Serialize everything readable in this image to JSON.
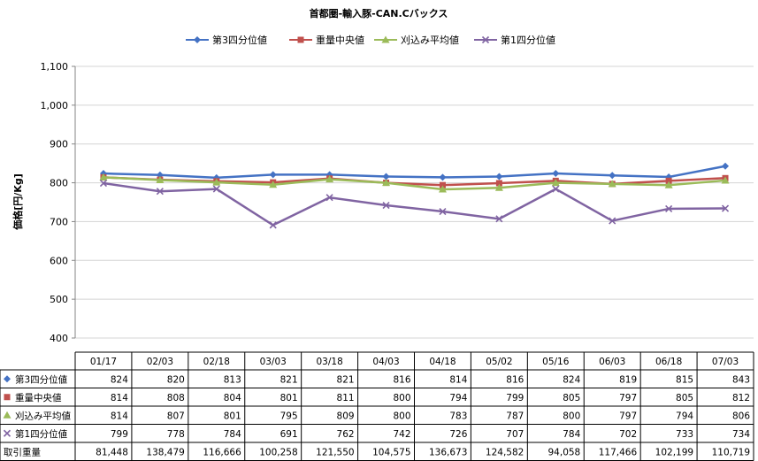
{
  "chart_data": {
    "type": "line",
    "title": "首都圏-輸入豚-CAN.Cバックス",
    "ylabel": "価格[円/Kg]",
    "ylim": [
      400,
      1100
    ],
    "yticks": [
      400,
      500,
      600,
      700,
      800,
      900,
      1000,
      1100
    ],
    "ytick_labels": [
      "400",
      "500",
      "600",
      "700",
      "800",
      "900",
      "1,000",
      "1,100"
    ],
    "categories": [
      "01/17",
      "02/03",
      "02/18",
      "03/03",
      "03/18",
      "04/03",
      "04/18",
      "05/02",
      "05/16",
      "06/03",
      "06/18",
      "07/03"
    ],
    "series": [
      {
        "name": "第3四分位値",
        "color": "#4472C4",
        "marker": "diamond",
        "values": [
          824,
          820,
          813,
          821,
          821,
          816,
          814,
          816,
          824,
          819,
          815,
          843
        ]
      },
      {
        "name": "重量中央値",
        "color": "#C0504D",
        "marker": "square",
        "values": [
          814,
          808,
          804,
          801,
          811,
          800,
          794,
          799,
          805,
          797,
          805,
          812
        ]
      },
      {
        "name": "刈込み平均値",
        "color": "#9BBB59",
        "marker": "triangle",
        "values": [
          814,
          807,
          801,
          795,
          809,
          800,
          783,
          787,
          800,
          797,
          794,
          806
        ]
      },
      {
        "name": "第1四分位値",
        "color": "#8064A2",
        "marker": "x",
        "values": [
          799,
          778,
          784,
          691,
          762,
          742,
          726,
          707,
          784,
          702,
          733,
          734
        ]
      }
    ],
    "table_rows": [
      {
        "label": "第3四分位値",
        "cells": [
          "824",
          "820",
          "813",
          "821",
          "821",
          "816",
          "814",
          "816",
          "824",
          "819",
          "815",
          "843"
        ]
      },
      {
        "label": "重量中央値",
        "cells": [
          "814",
          "808",
          "804",
          "801",
          "811",
          "800",
          "794",
          "799",
          "805",
          "797",
          "805",
          "812"
        ]
      },
      {
        "label": "刈込み平均値",
        "cells": [
          "814",
          "807",
          "801",
          "795",
          "809",
          "800",
          "783",
          "787",
          "800",
          "797",
          "794",
          "806"
        ]
      },
      {
        "label": "第1四分位値",
        "cells": [
          "799",
          "778",
          "784",
          "691",
          "762",
          "742",
          "726",
          "707",
          "784",
          "702",
          "733",
          "734"
        ]
      },
      {
        "label": "取引重量",
        "cells": [
          "81,448",
          "138,479",
          "116,666",
          "100,258",
          "121,550",
          "104,575",
          "136,673",
          "124,582",
          "94,058",
          "117,466",
          "102,199",
          "110,719"
        ]
      }
    ],
    "grid": true,
    "legend_position": "top"
  }
}
